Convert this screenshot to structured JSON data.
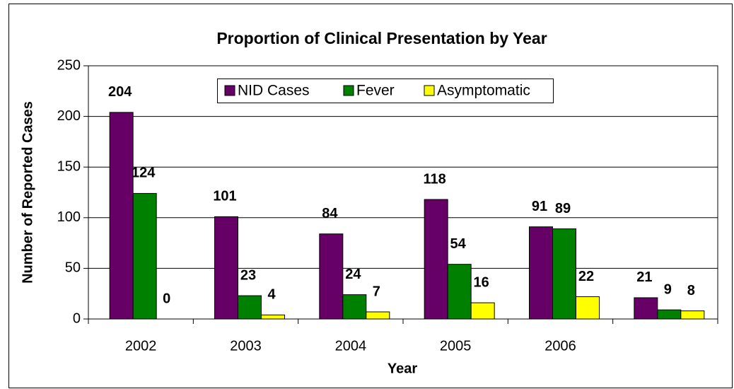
{
  "chart_data": {
    "type": "bar",
    "title": "Proportion of Clinical Presentation by Year",
    "x_label": "Year",
    "y_label": "Number of Reported Cases",
    "categories": [
      "2002",
      "2003",
      "2004",
      "2005",
      "2006",
      null
    ],
    "series": [
      {
        "name": "NID Cases",
        "color": "#660066",
        "values": [
          204,
          101,
          84,
          118,
          91,
          21
        ]
      },
      {
        "name": "Fever",
        "color": "#008000",
        "values": [
          124,
          23,
          24,
          54,
          89,
          9
        ]
      },
      {
        "name": "Asymptomatic",
        "color": "#ffff00",
        "values": [
          0,
          4,
          7,
          16,
          22,
          8
        ]
      }
    ],
    "ylim": [
      0,
      250
    ],
    "yticks": [
      0,
      50,
      100,
      150,
      200,
      250
    ],
    "grid": true,
    "legend": "top"
  }
}
